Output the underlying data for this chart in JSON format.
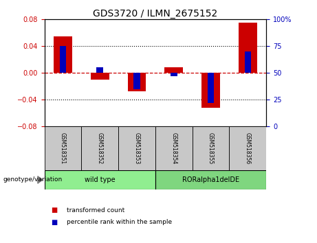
{
  "title": "GDS3720 / ILMN_2675152",
  "categories": [
    "GSM518351",
    "GSM518352",
    "GSM518353",
    "GSM518354",
    "GSM518355",
    "GSM518356"
  ],
  "red_values": [
    0.055,
    -0.01,
    -0.028,
    0.008,
    -0.052,
    0.075
  ],
  "blue_percentiles": [
    75,
    55,
    35,
    47,
    22,
    70
  ],
  "ylim_left": [
    -0.08,
    0.08
  ],
  "ylim_right": [
    0,
    100
  ],
  "yticks_left": [
    -0.08,
    -0.04,
    0,
    0.04,
    0.08
  ],
  "yticks_right": [
    0,
    25,
    50,
    75,
    100
  ],
  "groups": [
    {
      "label": "wild type",
      "indices": [
        0,
        1,
        2
      ],
      "color": "#90EE90"
    },
    {
      "label": "RORalpha1delDE",
      "indices": [
        3,
        4,
        5
      ],
      "color": "#7FD67F"
    }
  ],
  "group_label": "genotype/variation",
  "legend_red": "transformed count",
  "legend_blue": "percentile rank within the sample",
  "red_bar_width": 0.5,
  "blue_bar_width": 0.18,
  "red_color": "#CC0000",
  "blue_color": "#0000BB",
  "background_color": "#ffffff",
  "plot_bg": "#ffffff",
  "zero_line_color": "#CC0000",
  "zero_line_style": "--",
  "title_fontsize": 10,
  "tick_fontsize": 7,
  "label_fontsize": 7
}
